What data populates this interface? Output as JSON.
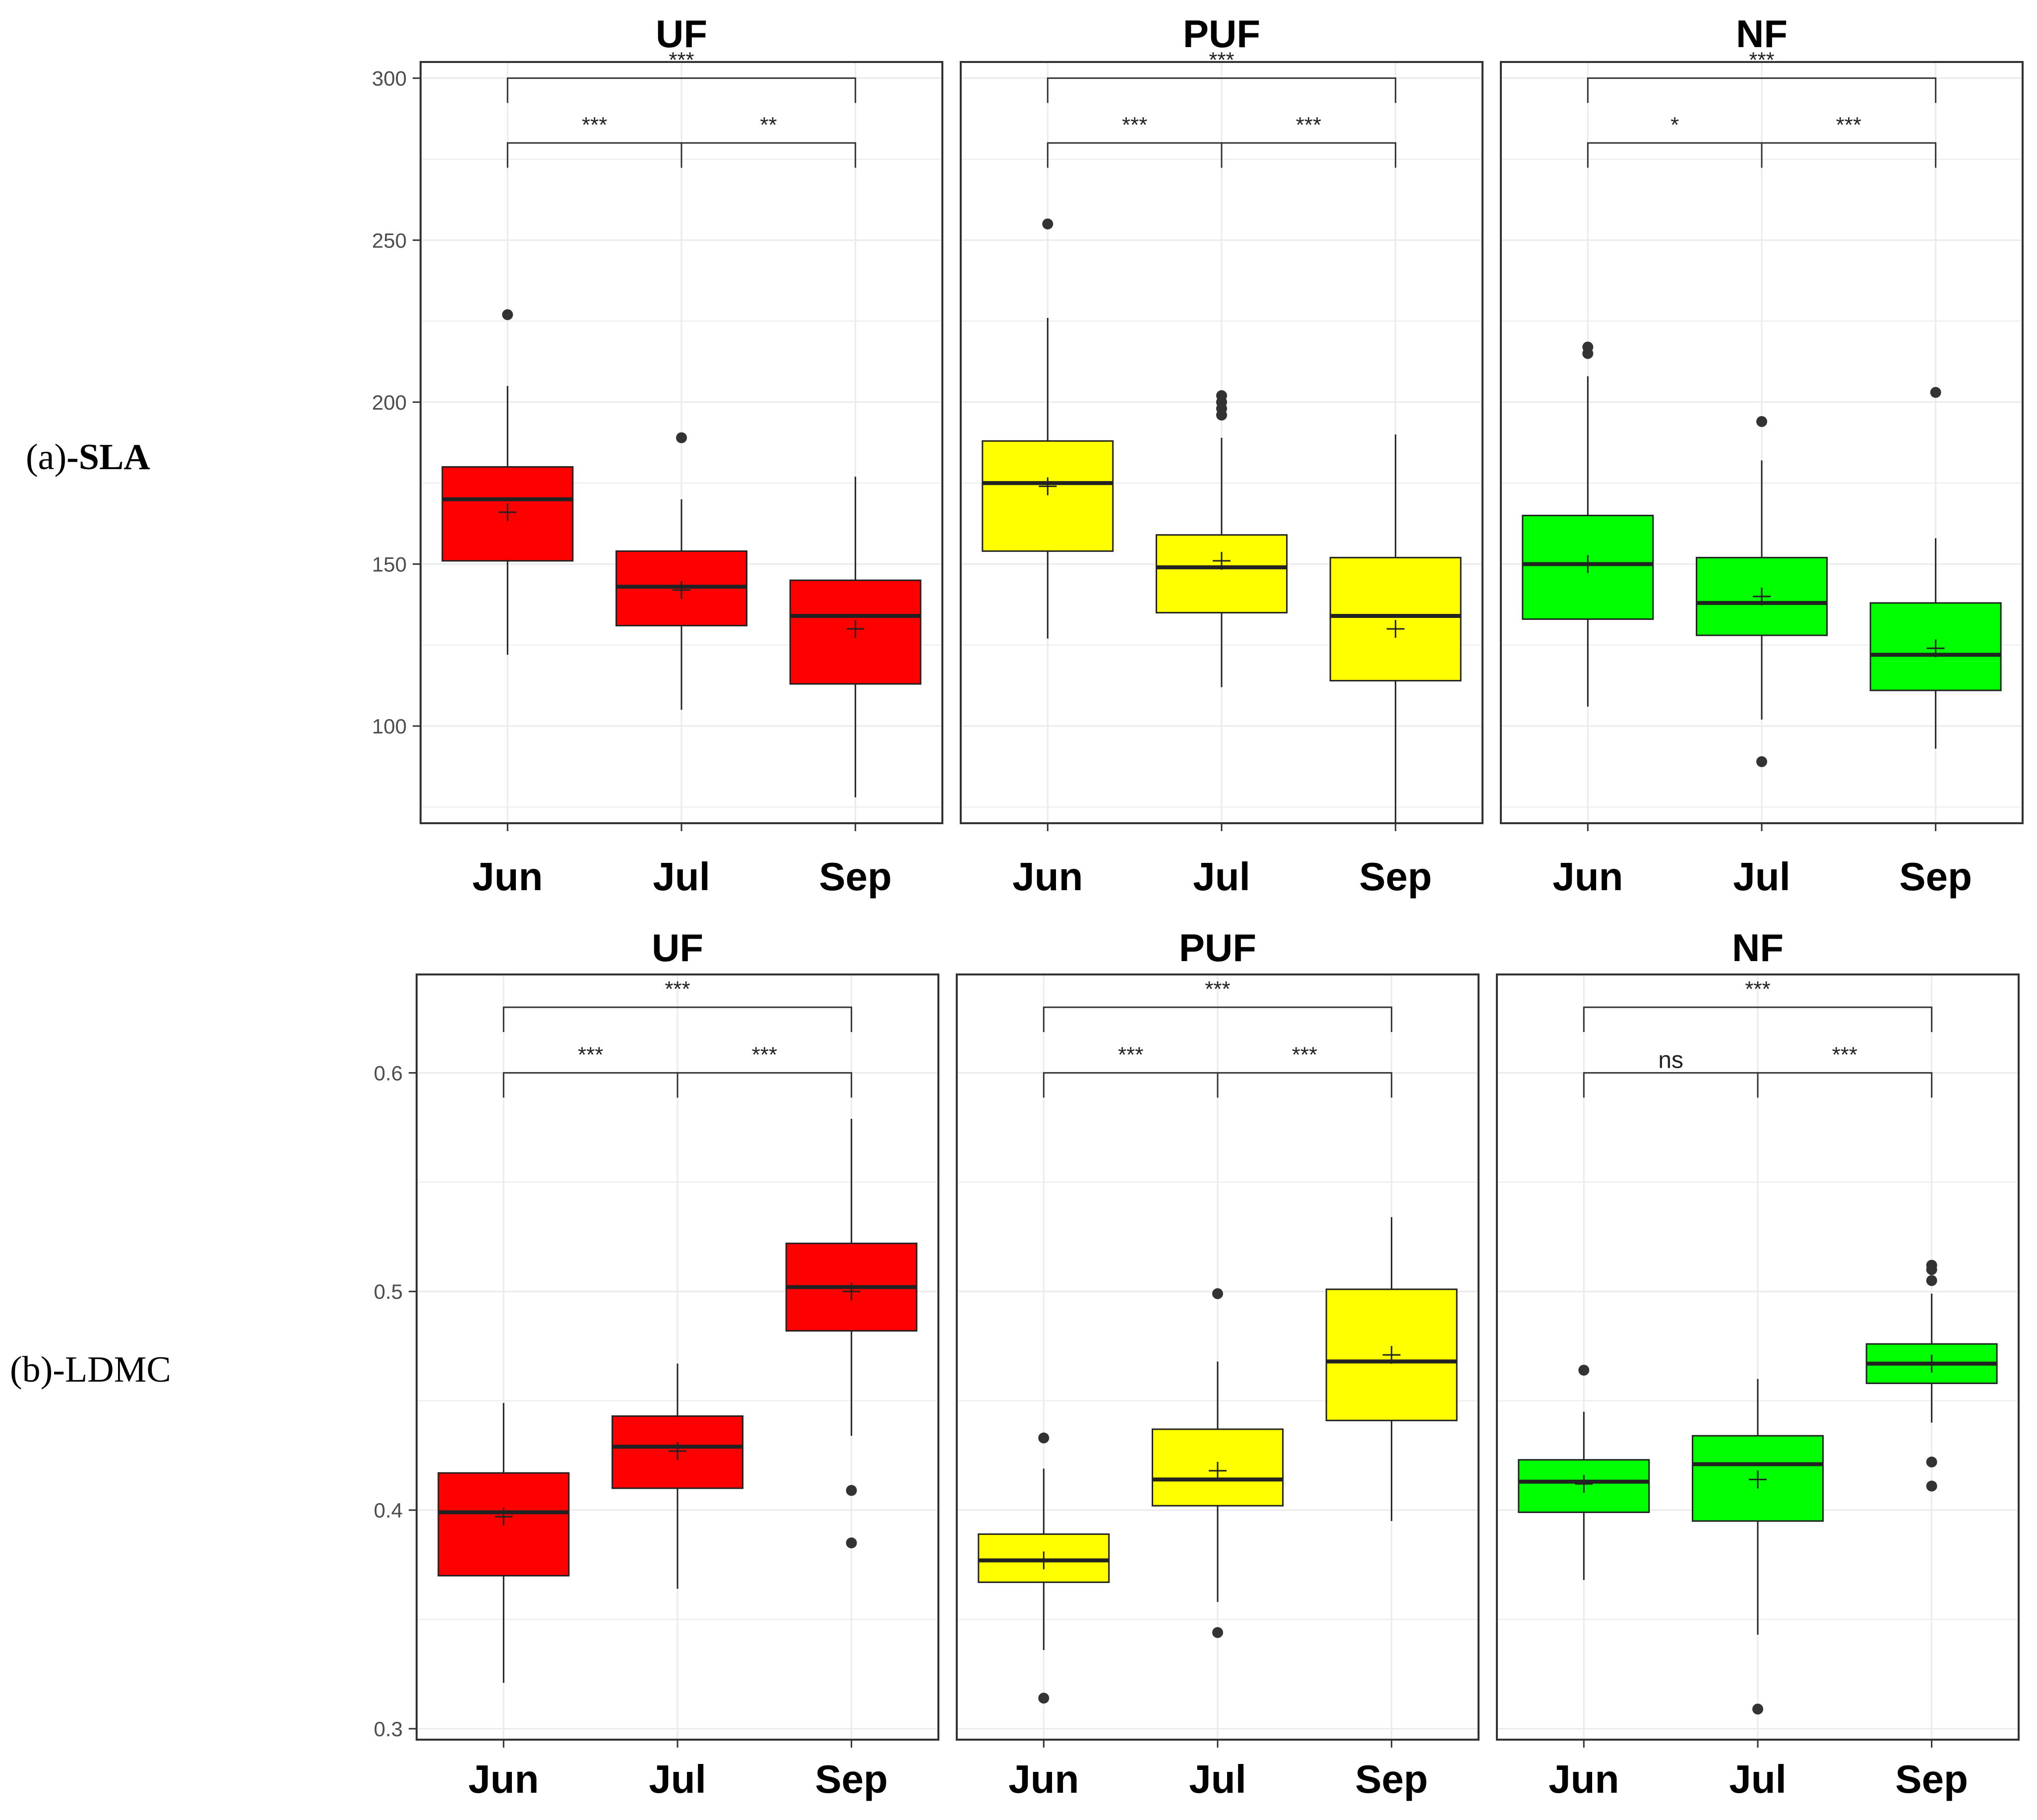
{
  "row_labels": [
    {
      "prefix": "(a)",
      "suffix": "-SLA"
    },
    {
      "prefix": "(b)",
      "suffix": "-LDMC"
    }
  ],
  "colors": {
    "UF": "#ff0000",
    "PUF": "#ffff00",
    "NF": "#00ff00",
    "line": "#222222",
    "grid": "#ebebeb",
    "tick_text": "#4d4d4d"
  },
  "chart_data": [
    {
      "type": "boxplot",
      "metric": "SLA",
      "ylim": [
        70,
        305
      ],
      "yticks": [
        100,
        150,
        200,
        250,
        300
      ],
      "ytick_labels": [
        "100",
        "150",
        "200",
        "250",
        "300"
      ],
      "categories": [
        "Jun",
        "Jul",
        "Sep"
      ],
      "bracket_y": [
        280,
        300
      ],
      "panels": [
        {
          "title": "UF",
          "color_key": "UF",
          "boxes": [
            {
              "category": "Jun",
              "q1": 151,
              "median": 170,
              "q3": 180,
              "mean": 166,
              "whisker_low": 122,
              "whisker_high": 205,
              "outliers": [
                227
              ]
            },
            {
              "category": "Jul",
              "q1": 131,
              "median": 143,
              "q3": 154,
              "mean": 142,
              "whisker_low": 105,
              "whisker_high": 170,
              "outliers": [
                189
              ]
            },
            {
              "category": "Sep",
              "q1": 113,
              "median": 134,
              "q3": 145,
              "mean": 130,
              "whisker_low": 78,
              "whisker_high": 177,
              "outliers": []
            }
          ],
          "comparisons": [
            {
              "pair": [
                "Jun",
                "Jul"
              ],
              "label": "***"
            },
            {
              "pair": [
                "Jul",
                "Sep"
              ],
              "label": "**"
            },
            {
              "pair": [
                "Jun",
                "Sep"
              ],
              "label": "***"
            }
          ]
        },
        {
          "title": "PUF",
          "color_key": "PUF",
          "boxes": [
            {
              "category": "Jun",
              "q1": 154,
              "median": 175,
              "q3": 188,
              "mean": 174,
              "whisker_low": 127,
              "whisker_high": 226,
              "outliers": [
                255
              ]
            },
            {
              "category": "Jul",
              "q1": 135,
              "median": 149,
              "q3": 159,
              "mean": 151,
              "whisker_low": 112,
              "whisker_high": 189,
              "outliers": [
                196,
                198,
                200,
                202
              ]
            },
            {
              "category": "Sep",
              "q1": 114,
              "median": 134,
              "q3": 152,
              "mean": 130,
              "whisker_low": 70,
              "whisker_high": 190,
              "outliers": []
            }
          ],
          "comparisons": [
            {
              "pair": [
                "Jun",
                "Jul"
              ],
              "label": "***"
            },
            {
              "pair": [
                "Jul",
                "Sep"
              ],
              "label": "***"
            },
            {
              "pair": [
                "Jun",
                "Sep"
              ],
              "label": "***"
            }
          ]
        },
        {
          "title": "NF",
          "color_key": "NF",
          "boxes": [
            {
              "category": "Jun",
              "q1": 133,
              "median": 150,
              "q3": 165,
              "mean": 150,
              "whisker_low": 106,
              "whisker_high": 208,
              "outliers": [
                215,
                217
              ]
            },
            {
              "category": "Jul",
              "q1": 128,
              "median": 138,
              "q3": 152,
              "mean": 140,
              "whisker_low": 102,
              "whisker_high": 182,
              "outliers": [
                89,
                194
              ]
            },
            {
              "category": "Sep",
              "q1": 111,
              "median": 122,
              "q3": 138,
              "mean": 124,
              "whisker_low": 93,
              "whisker_high": 158,
              "outliers": [
                203
              ]
            }
          ],
          "comparisons": [
            {
              "pair": [
                "Jun",
                "Jul"
              ],
              "label": "*"
            },
            {
              "pair": [
                "Jul",
                "Sep"
              ],
              "label": "***"
            },
            {
              "pair": [
                "Jun",
                "Sep"
              ],
              "label": "***"
            }
          ]
        }
      ]
    },
    {
      "type": "boxplot",
      "metric": "LDMC",
      "ylim": [
        0.295,
        0.645
      ],
      "yticks": [
        0.3,
        0.4,
        0.5,
        0.6
      ],
      "ytick_labels": [
        "0.3",
        "0.4",
        "0.5",
        "0.6"
      ],
      "categories": [
        "Jun",
        "Jul",
        "Sep"
      ],
      "bracket_y": [
        0.6,
        0.63
      ],
      "panels": [
        {
          "title": "UF",
          "color_key": "UF",
          "boxes": [
            {
              "category": "Jun",
              "q1": 0.37,
              "median": 0.399,
              "q3": 0.417,
              "mean": 0.397,
              "whisker_low": 0.321,
              "whisker_high": 0.449,
              "outliers": []
            },
            {
              "category": "Jul",
              "q1": 0.41,
              "median": 0.429,
              "q3": 0.443,
              "mean": 0.427,
              "whisker_low": 0.364,
              "whisker_high": 0.467,
              "outliers": []
            },
            {
              "category": "Sep",
              "q1": 0.482,
              "median": 0.502,
              "q3": 0.522,
              "mean": 0.5,
              "whisker_low": 0.434,
              "whisker_high": 0.579,
              "outliers": [
                0.385,
                0.409
              ]
            }
          ],
          "comparisons": [
            {
              "pair": [
                "Jun",
                "Jul"
              ],
              "label": "***"
            },
            {
              "pair": [
                "Jul",
                "Sep"
              ],
              "label": "***"
            },
            {
              "pair": [
                "Jun",
                "Sep"
              ],
              "label": "***"
            }
          ]
        },
        {
          "title": "PUF",
          "color_key": "PUF",
          "boxes": [
            {
              "category": "Jun",
              "q1": 0.367,
              "median": 0.377,
              "q3": 0.389,
              "mean": 0.377,
              "whisker_low": 0.336,
              "whisker_high": 0.419,
              "outliers": [
                0.314,
                0.433
              ]
            },
            {
              "category": "Jul",
              "q1": 0.402,
              "median": 0.414,
              "q3": 0.437,
              "mean": 0.418,
              "whisker_low": 0.358,
              "whisker_high": 0.468,
              "outliers": [
                0.344,
                0.499
              ]
            },
            {
              "category": "Sep",
              "q1": 0.441,
              "median": 0.468,
              "q3": 0.501,
              "mean": 0.471,
              "whisker_low": 0.395,
              "whisker_high": 0.534,
              "outliers": []
            }
          ],
          "comparisons": [
            {
              "pair": [
                "Jun",
                "Jul"
              ],
              "label": "***"
            },
            {
              "pair": [
                "Jul",
                "Sep"
              ],
              "label": "***"
            },
            {
              "pair": [
                "Jun",
                "Sep"
              ],
              "label": "***"
            }
          ]
        },
        {
          "title": "NF",
          "color_key": "NF",
          "boxes": [
            {
              "category": "Jun",
              "q1": 0.399,
              "median": 0.413,
              "q3": 0.423,
              "mean": 0.412,
              "whisker_low": 0.368,
              "whisker_high": 0.445,
              "outliers": [
                0.464
              ]
            },
            {
              "category": "Jul",
              "q1": 0.395,
              "median": 0.421,
              "q3": 0.434,
              "mean": 0.414,
              "whisker_low": 0.343,
              "whisker_high": 0.46,
              "outliers": [
                0.309
              ]
            },
            {
              "category": "Sep",
              "q1": 0.458,
              "median": 0.467,
              "q3": 0.476,
              "mean": 0.467,
              "whisker_low": 0.44,
              "whisker_high": 0.499,
              "outliers": [
                0.411,
                0.422,
                0.505,
                0.51,
                0.512
              ]
            }
          ],
          "comparisons": [
            {
              "pair": [
                "Jun",
                "Jul"
              ],
              "label": "ns"
            },
            {
              "pair": [
                "Jul",
                "Sep"
              ],
              "label": "***"
            },
            {
              "pair": [
                "Jun",
                "Sep"
              ],
              "label": "***"
            }
          ]
        }
      ]
    }
  ]
}
